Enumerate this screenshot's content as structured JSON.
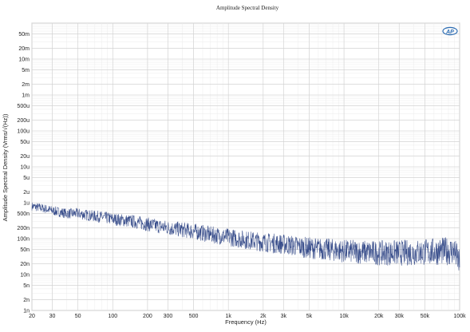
{
  "chart_data": {
    "type": "line",
    "title": "Amplitude Spectral Density",
    "xlabel": "Frequency (Hz)",
    "ylabel": "Amplitude Spectral Density (Vrms/√(Hz))",
    "x_scale": "log",
    "y_scale": "log",
    "xlim": [
      20,
      100000
    ],
    "ylim": [
      1e-09,
      0.1
    ],
    "grid": true,
    "x_ticks": [
      {
        "value": 20,
        "label": "20"
      },
      {
        "value": 30,
        "label": "30"
      },
      {
        "value": 50,
        "label": "50"
      },
      {
        "value": 100,
        "label": "100"
      },
      {
        "value": 200,
        "label": "200"
      },
      {
        "value": 300,
        "label": "300"
      },
      {
        "value": 500,
        "label": "500"
      },
      {
        "value": 1000,
        "label": "1k"
      },
      {
        "value": 2000,
        "label": "2k"
      },
      {
        "value": 3000,
        "label": "3k"
      },
      {
        "value": 5000,
        "label": "5k"
      },
      {
        "value": 10000,
        "label": "10k"
      },
      {
        "value": 20000,
        "label": "20k"
      },
      {
        "value": 30000,
        "label": "30k"
      },
      {
        "value": 50000,
        "label": "50k"
      },
      {
        "value": 100000,
        "label": "100k"
      }
    ],
    "y_ticks": [
      {
        "value": 0.05,
        "label": "50m"
      },
      {
        "value": 0.02,
        "label": "20m"
      },
      {
        "value": 0.01,
        "label": "10m"
      },
      {
        "value": 0.005,
        "label": "5m"
      },
      {
        "value": 0.002,
        "label": "2m"
      },
      {
        "value": 0.001,
        "label": "1m"
      },
      {
        "value": 0.0005,
        "label": "500u"
      },
      {
        "value": 0.0002,
        "label": "200u"
      },
      {
        "value": 0.0001,
        "label": "100u"
      },
      {
        "value": 5e-05,
        "label": "50u"
      },
      {
        "value": 2e-05,
        "label": "20u"
      },
      {
        "value": 1e-05,
        "label": "10u"
      },
      {
        "value": 5e-06,
        "label": "5u"
      },
      {
        "value": 2e-06,
        "label": "2u"
      },
      {
        "value": 1e-06,
        "label": "1u"
      },
      {
        "value": 5e-07,
        "label": "500n"
      },
      {
        "value": 2e-07,
        "label": "200n"
      },
      {
        "value": 1e-07,
        "label": "100n"
      },
      {
        "value": 5e-08,
        "label": "50n"
      },
      {
        "value": 2e-08,
        "label": "20n"
      },
      {
        "value": 1e-08,
        "label": "10n"
      },
      {
        "value": 5e-09,
        "label": "5n"
      },
      {
        "value": 2e-09,
        "label": "2n"
      },
      {
        "value": 1e-09,
        "label": "1n"
      }
    ],
    "series": [
      {
        "color": "#3a4f8c",
        "x": [
          20,
          25,
          30,
          40,
          50,
          60,
          80,
          100,
          150,
          200,
          300,
          500,
          700,
          1000,
          1500,
          2000,
          3000,
          5000,
          7000,
          10000,
          15000,
          20000,
          30000,
          50000,
          70000,
          90000,
          100000
        ],
        "y": [
          8e-07,
          7e-07,
          6e-07,
          5e-07,
          5e-07,
          4.5e-07,
          4e-07,
          3.5e-07,
          3e-07,
          2.5e-07,
          2e-07,
          1.6e-07,
          1.3e-07,
          1.1e-07,
          9e-08,
          8e-08,
          7e-08,
          5.5e-08,
          5e-08,
          4.5e-08,
          4.2e-08,
          4e-08,
          4e-08,
          4.2e-08,
          4.5e-08,
          4.5e-08,
          2e-08
        ]
      }
    ]
  },
  "branding": {
    "logo_text": "AP",
    "logo_color": "#2f6fb5"
  }
}
